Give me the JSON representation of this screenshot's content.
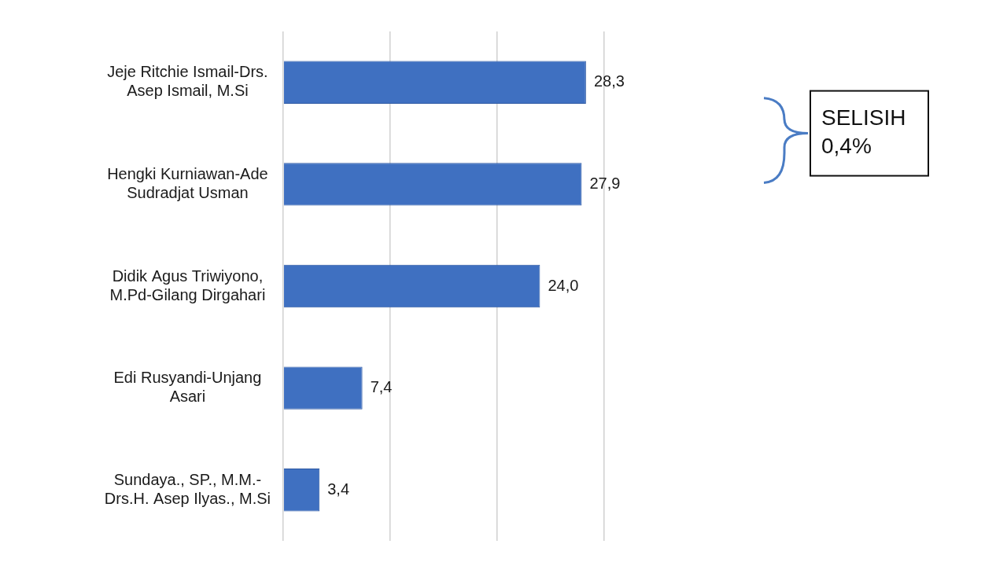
{
  "chart_data": {
    "type": "bar",
    "orientation": "horizontal",
    "categories": [
      [
        "Jeje Ritchie Ismail-Drs.",
        "Asep Ismail, M.Si"
      ],
      [
        "Hengki Kurniawan-Ade",
        "Sudradjat Usman"
      ],
      [
        "Didik Agus Triwiyono,",
        "M.Pd-Gilang Dirgahari"
      ],
      [
        "Edi Rusyandi-Unjang",
        "Asari"
      ],
      [
        "Sundaya., SP., M.M.-",
        "Drs.H. Asep Ilyas., M.Si"
      ]
    ],
    "values": [
      28.3,
      27.9,
      24.0,
      7.4,
      3.4
    ],
    "value_labels": [
      "28,3",
      "27,9",
      "24,0",
      "7,4",
      "3,4"
    ],
    "data_labels": true,
    "color": "#3f70c1",
    "xlim": [
      0,
      30
    ],
    "xticks": [
      0,
      10,
      20,
      30
    ],
    "grid": true,
    "tick_labels": "y",
    "annotations": [
      {
        "text": [
          "SELISIH",
          "0,4%"
        ],
        "between": [
          0,
          1
        ]
      }
    ]
  }
}
